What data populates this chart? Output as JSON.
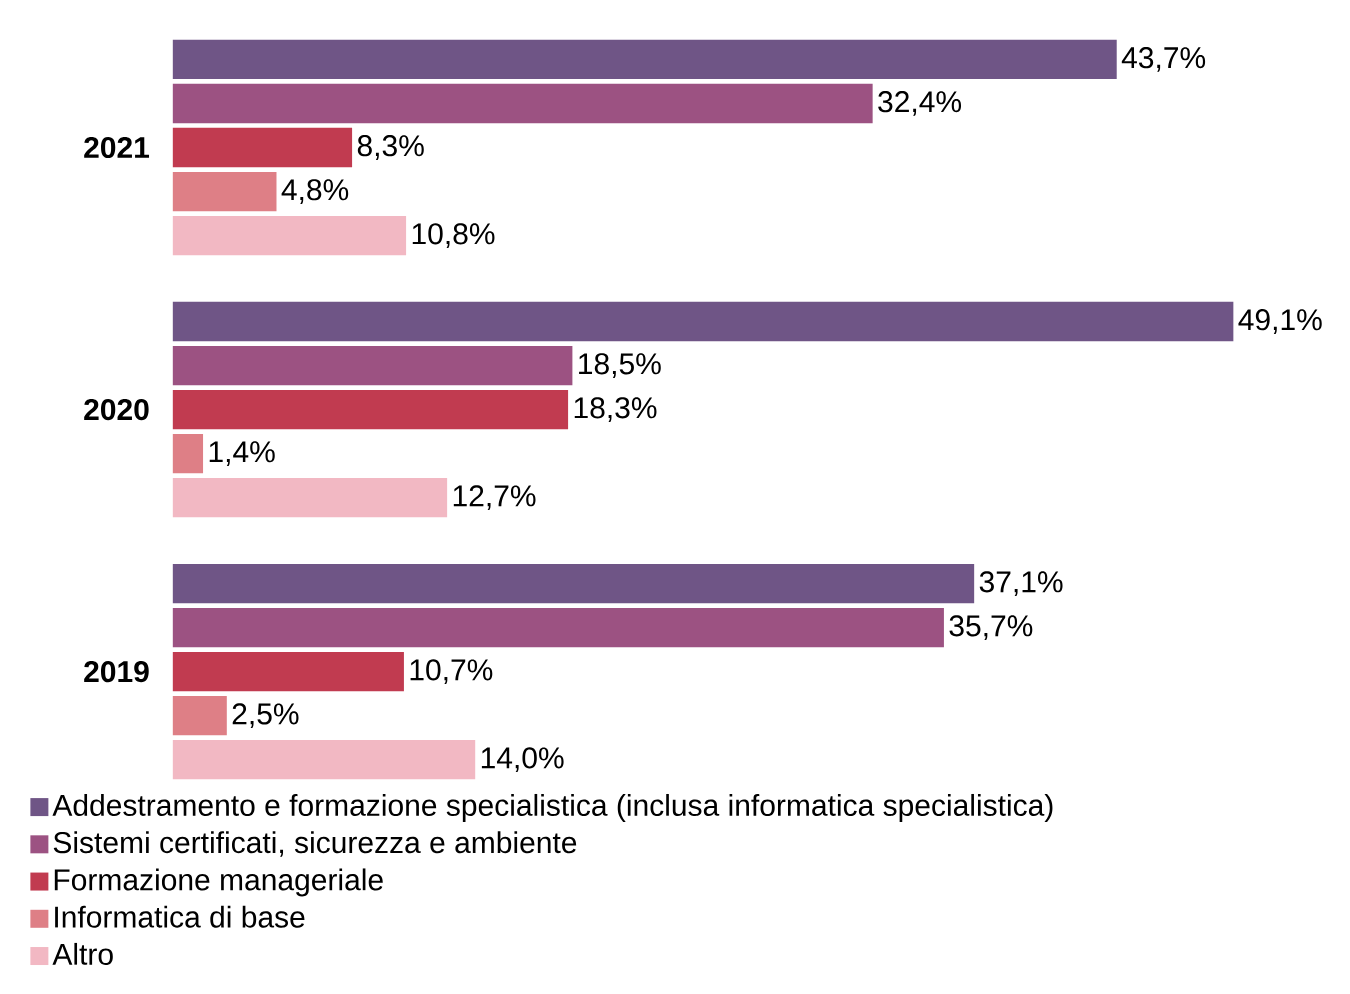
{
  "chart_data": {
    "type": "bar",
    "orientation": "horizontal",
    "categories": [
      "2021",
      "2020",
      "2019"
    ],
    "tick_labels": "y",
    "legend": "bottom",
    "series": [
      {
        "name": "Addestramento e formazione specialistica (inclusa informatica specialistica)",
        "color": "#6f5586",
        "values": [
          43.7,
          49.1,
          37.1
        ],
        "value_labels": [
          "43,7%",
          "49,1%",
          "37,1%"
        ]
      },
      {
        "name": "Sistemi certificati, sicurezza e ambiente",
        "color": "#9c5282",
        "values": [
          32.4,
          18.5,
          35.7
        ],
        "value_labels": [
          "32,4%",
          "18,5%",
          "35,7%"
        ]
      },
      {
        "name": "Formazione manageriale",
        "color": "#c13b50",
        "values": [
          8.3,
          18.3,
          10.7
        ],
        "value_labels": [
          "8,3%",
          "18,3%",
          "10,7%"
        ]
      },
      {
        "name": "Informatica di base",
        "color": "#de7f86",
        "values": [
          4.8,
          1.4,
          2.5
        ],
        "value_labels": [
          "4,8%",
          "1,4%",
          "2,5%"
        ]
      },
      {
        "name": "Altro",
        "color": "#f2b8c3",
        "values": [
          10.8,
          12.7,
          14.0
        ],
        "value_labels": [
          "10,8%",
          "12,7%",
          "14,0%"
        ]
      }
    ]
  }
}
